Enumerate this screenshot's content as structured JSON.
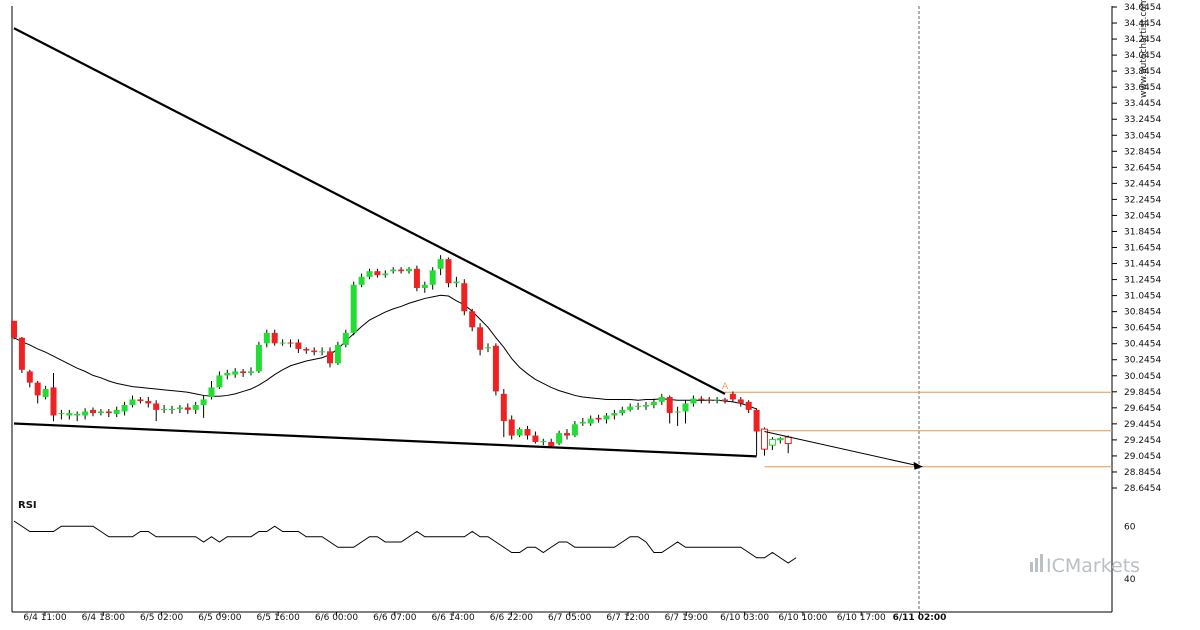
{
  "chart_data": {
    "type": "candlestick",
    "y_ticks": [
      "34.6454",
      "34.4454",
      "34.2454",
      "34.0454",
      "33.8454",
      "33.6454",
      "33.4454",
      "33.2454",
      "33.0454",
      "32.8454",
      "32.6454",
      "32.4454",
      "32.2454",
      "32.0454",
      "31.8454",
      "31.6454",
      "31.4454",
      "31.2454",
      "31.0454",
      "30.8454",
      "30.6454",
      "30.4454",
      "30.2454",
      "30.0454",
      "29.8454",
      "29.6454",
      "29.4454",
      "29.2454",
      "29.0454",
      "28.8454",
      "28.6454"
    ],
    "ylim": [
      28.6454,
      34.6454
    ],
    "x_ticks": [
      "6/4 11:00",
      "6/4 18:00",
      "6/5 02:00",
      "6/5 09:00",
      "6/5 16:00",
      "6/6 00:00",
      "6/6 07:00",
      "6/6 14:00",
      "6/6 22:00",
      "6/7 05:00",
      "6/7 12:00",
      "6/7 19:00",
      "6/10 03:00",
      "6/10 10:00",
      "6/10 17:00",
      "6/11 02:00"
    ],
    "x_tick_bold": "6/11 02:00",
    "candles": [
      [
        30.73,
        30.52,
        30.73,
        30.5
      ],
      [
        30.52,
        30.12,
        30.53,
        30.08
      ],
      [
        30.1,
        29.96,
        30.12,
        29.9
      ],
      [
        29.96,
        29.8,
        29.98,
        29.7
      ],
      [
        29.78,
        29.88,
        29.92,
        29.75
      ],
      [
        29.9,
        29.55,
        30.08,
        29.48
      ],
      [
        29.58,
        29.58,
        29.62,
        29.5
      ],
      [
        29.55,
        29.58,
        29.62,
        29.5
      ],
      [
        29.55,
        29.57,
        29.6,
        29.48
      ],
      [
        29.55,
        29.6,
        29.64,
        29.5
      ],
      [
        29.62,
        29.58,
        29.65,
        29.54
      ],
      [
        29.58,
        29.6,
        29.63,
        29.55
      ],
      [
        29.6,
        29.58,
        29.63,
        29.53
      ],
      [
        29.57,
        29.62,
        29.66,
        29.53
      ],
      [
        29.6,
        29.68,
        29.72,
        29.55
      ],
      [
        29.68,
        29.75,
        29.8,
        29.65
      ],
      [
        29.75,
        29.73,
        29.78,
        29.7
      ],
      [
        29.73,
        29.7,
        29.78,
        29.65
      ],
      [
        29.7,
        29.62,
        29.74,
        29.48
      ],
      [
        29.62,
        29.63,
        29.68,
        29.58
      ],
      [
        29.62,
        29.63,
        29.67,
        29.57
      ],
      [
        29.63,
        29.65,
        29.68,
        29.58
      ],
      [
        29.65,
        29.62,
        29.7,
        29.57
      ],
      [
        29.62,
        29.68,
        29.72,
        29.57
      ],
      [
        29.68,
        29.75,
        29.8,
        29.52
      ],
      [
        29.78,
        29.9,
        29.98,
        29.75
      ],
      [
        29.9,
        30.05,
        30.1,
        29.88
      ],
      [
        30.05,
        30.08,
        30.12,
        30.0
      ],
      [
        30.06,
        30.1,
        30.14,
        30.02
      ],
      [
        30.1,
        30.08,
        30.13,
        30.03
      ],
      [
        30.08,
        30.1,
        30.15,
        30.05
      ],
      [
        30.1,
        30.43,
        30.47,
        30.08
      ],
      [
        30.45,
        30.58,
        30.62,
        30.4
      ],
      [
        30.58,
        30.45,
        30.62,
        30.42
      ],
      [
        30.45,
        30.46,
        30.5,
        30.42
      ],
      [
        30.46,
        30.45,
        30.5,
        30.4
      ],
      [
        30.46,
        30.38,
        30.5,
        30.33
      ],
      [
        30.38,
        30.36,
        30.4,
        30.32
      ],
      [
        30.36,
        30.34,
        30.4,
        30.3
      ],
      [
        30.34,
        30.35,
        30.4,
        30.3
      ],
      [
        30.35,
        30.2,
        30.4,
        30.15
      ],
      [
        30.2,
        30.43,
        30.47,
        30.18
      ],
      [
        30.43,
        30.58,
        30.62,
        30.4
      ],
      [
        30.58,
        31.18,
        31.22,
        30.55
      ],
      [
        31.18,
        31.28,
        31.32,
        31.15
      ],
      [
        31.28,
        31.35,
        31.38,
        31.25
      ],
      [
        31.35,
        31.3,
        31.38,
        31.27
      ],
      [
        31.3,
        31.32,
        31.36,
        31.27
      ],
      [
        31.35,
        31.37,
        31.4,
        31.32
      ],
      [
        31.37,
        31.35,
        31.4,
        31.32
      ],
      [
        31.35,
        31.38,
        31.4,
        31.32
      ],
      [
        31.38,
        31.14,
        31.42,
        31.1
      ],
      [
        31.14,
        31.18,
        31.22,
        31.08
      ],
      [
        31.18,
        31.36,
        31.4,
        31.12
      ],
      [
        31.38,
        31.5,
        31.55,
        31.3
      ],
      [
        31.5,
        31.2,
        31.52,
        31.15
      ],
      [
        31.2,
        31.22,
        31.28,
        31.15
      ],
      [
        31.2,
        30.85,
        31.25,
        30.8
      ],
      [
        30.85,
        30.65,
        30.88,
        30.6
      ],
      [
        30.65,
        30.37,
        30.7,
        30.3
      ],
      [
        30.4,
        30.4,
        30.45,
        30.34
      ],
      [
        30.42,
        29.85,
        30.45,
        29.8
      ],
      [
        29.82,
        29.48,
        29.88,
        29.28
      ],
      [
        29.5,
        29.3,
        29.55,
        29.25
      ],
      [
        29.3,
        29.38,
        29.4,
        29.28
      ],
      [
        29.38,
        29.3,
        29.42,
        29.25
      ],
      [
        29.3,
        29.22,
        29.35,
        29.2
      ],
      [
        29.22,
        29.23,
        29.26,
        29.18
      ],
      [
        29.22,
        29.17,
        29.26,
        29.15
      ],
      [
        29.2,
        29.33,
        29.36,
        29.18
      ],
      [
        29.33,
        29.3,
        29.38,
        29.25
      ],
      [
        29.3,
        29.44,
        29.48,
        29.28
      ],
      [
        29.45,
        29.47,
        29.52,
        29.42
      ],
      [
        29.45,
        29.51,
        29.55,
        29.42
      ],
      [
        29.52,
        29.5,
        29.56,
        29.46
      ],
      [
        29.5,
        29.55,
        29.58,
        29.45
      ],
      [
        29.55,
        29.58,
        29.62,
        29.5
      ],
      [
        29.58,
        29.62,
        29.66,
        29.55
      ],
      [
        29.62,
        29.66,
        29.7,
        29.6
      ],
      [
        29.66,
        29.67,
        29.71,
        29.62
      ],
      [
        29.66,
        29.68,
        29.72,
        29.62
      ],
      [
        29.68,
        29.72,
        29.76,
        29.64
      ],
      [
        29.72,
        29.78,
        29.82,
        29.68
      ],
      [
        29.78,
        29.58,
        29.8,
        29.45
      ],
      [
        29.6,
        29.6,
        29.66,
        29.42
      ],
      [
        29.6,
        29.7,
        29.74,
        29.45
      ],
      [
        29.7,
        29.76,
        29.8,
        29.66
      ],
      [
        29.76,
        29.75,
        29.79,
        29.7
      ],
      [
        29.75,
        29.74,
        29.78,
        29.7
      ],
      [
        29.74,
        29.75,
        29.78,
        29.7
      ],
      [
        29.75,
        29.73,
        29.77,
        29.7
      ],
      [
        29.82,
        29.75,
        29.85,
        29.72
      ],
      [
        29.75,
        29.7,
        29.78,
        29.66
      ],
      [
        29.72,
        29.62,
        29.74,
        29.58
      ],
      [
        29.62,
        29.35,
        29.64,
        29.05
      ],
      [
        29.38,
        29.13,
        29.4,
        29.05
      ],
      [
        29.18,
        29.25,
        29.28,
        29.12
      ],
      [
        29.25,
        29.26,
        29.28,
        29.2
      ],
      [
        29.28,
        29.2,
        29.3,
        29.08
      ]
    ],
    "ma": [
      30.52,
      30.47,
      30.43,
      30.38,
      30.34,
      30.29,
      30.24,
      30.19,
      30.14,
      30.1,
      30.05,
      30.02,
      29.98,
      29.95,
      29.93,
      29.91,
      29.9,
      29.89,
      29.88,
      29.87,
      29.86,
      29.85,
      29.84,
      29.82,
      29.8,
      29.79,
      29.79,
      29.8,
      29.82,
      29.85,
      29.88,
      29.93,
      29.99,
      30.06,
      30.12,
      30.17,
      30.2,
      30.23,
      30.25,
      30.27,
      30.31,
      30.38,
      30.48,
      30.57,
      30.66,
      30.74,
      30.79,
      30.84,
      30.88,
      30.91,
      30.95,
      30.98,
      31.01,
      31.03,
      31.05,
      31.04,
      30.98,
      30.93,
      30.85,
      30.75,
      30.65,
      30.52,
      30.4,
      30.26,
      30.15,
      30.07,
      30.0,
      29.95,
      29.9,
      29.86,
      29.83,
      29.8,
      29.78,
      29.77,
      29.76,
      29.75,
      29.75,
      29.75,
      29.75,
      29.74,
      29.75,
      29.75,
      29.76,
      29.75,
      29.74,
      29.74,
      29.74,
      29.74,
      29.74,
      29.74,
      29.73,
      29.72,
      29.7,
      29.67,
      29.63
    ],
    "upper_trendline": [
      [
        0,
        34.38
      ],
      [
        90,
        29.82
      ]
    ],
    "lower_trendline": [
      [
        0,
        29.45
      ],
      [
        94,
        29.04
      ]
    ],
    "projection": [
      [
        95,
        29.35
      ],
      [
        115,
        28.91
      ]
    ],
    "levels": [
      29.84,
      29.36,
      28.91
    ],
    "annotation_label": "A",
    "rsi": {
      "title": "RSI",
      "ylim": [
        30,
        70
      ],
      "y_ticks": [
        "60",
        "40"
      ],
      "values": [
        62,
        60,
        58,
        58,
        58,
        58,
        60,
        60,
        60,
        60,
        60,
        58,
        56,
        56,
        56,
        56,
        58,
        58,
        56,
        56,
        56,
        56,
        56,
        56,
        54,
        56,
        54,
        56,
        56,
        56,
        56,
        58,
        58,
        60,
        58,
        58,
        58,
        56,
        56,
        56,
        54,
        52,
        52,
        52,
        54,
        56,
        56,
        54,
        54,
        54,
        56,
        58,
        56,
        56,
        56,
        56,
        56,
        56,
        58,
        56,
        56,
        54,
        52,
        50,
        50,
        52,
        52,
        50,
        52,
        54,
        54,
        52,
        52,
        52,
        52,
        52,
        52,
        54,
        56,
        56,
        54,
        50,
        50,
        52,
        54,
        52,
        52,
        52,
        52,
        52,
        52,
        52,
        52,
        50,
        48,
        48,
        50,
        48,
        46,
        48
      ]
    }
  },
  "watermark": "www.autochartist.com",
  "brand": "ICMarkets"
}
